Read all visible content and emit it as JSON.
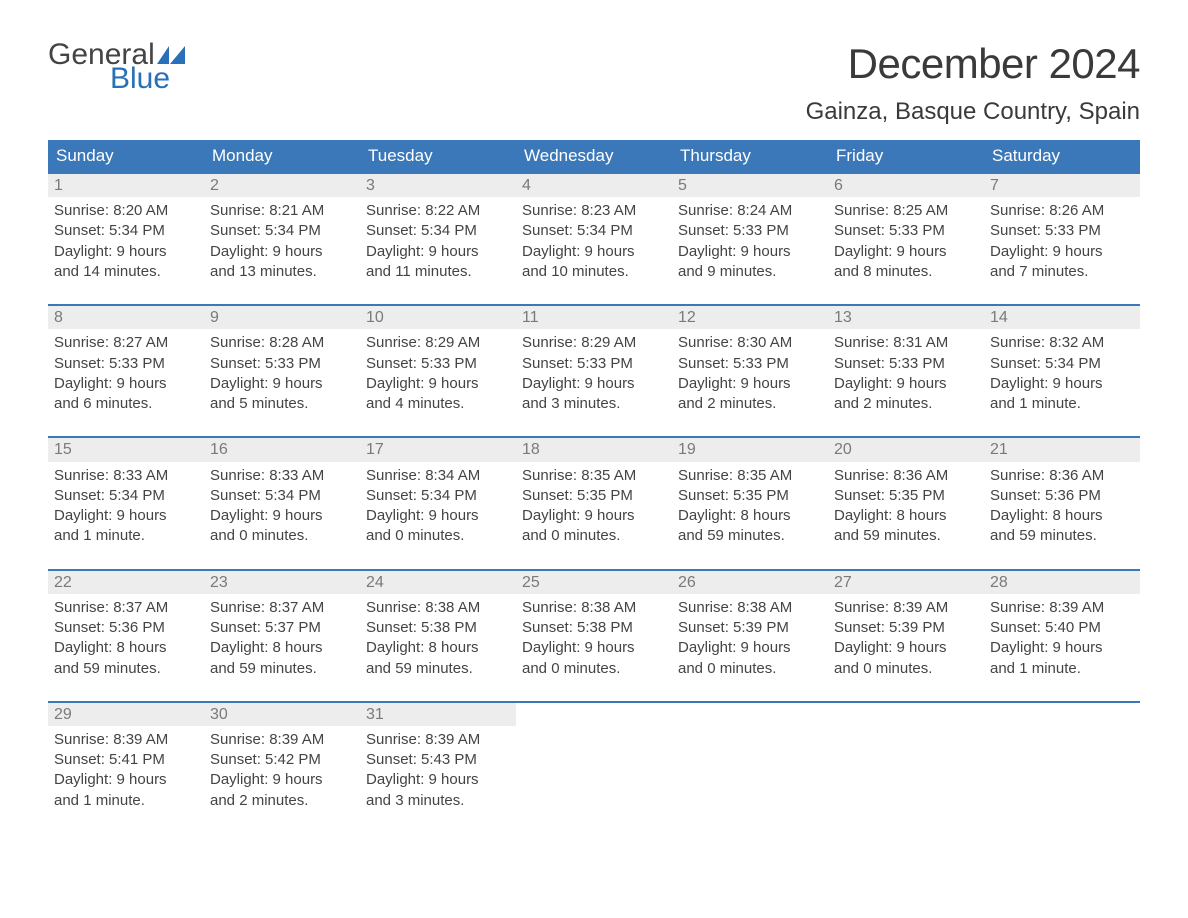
{
  "brand": {
    "general": "General",
    "blue": "Blue",
    "flag_color": "#2a70b8"
  },
  "title": "December 2024",
  "location": "Gainza, Basque Country, Spain",
  "colors": {
    "header_bg": "#3a78b9",
    "header_text": "#ffffff",
    "daynum_bg": "#ededed",
    "daynum_text": "#7a7a7a",
    "body_text": "#444444",
    "week_border": "#3a78b9",
    "page_bg": "#ffffff",
    "logo_blue": "#2a70b8"
  },
  "day_headers": [
    "Sunday",
    "Monday",
    "Tuesday",
    "Wednesday",
    "Thursday",
    "Friday",
    "Saturday"
  ],
  "weeks": [
    [
      {
        "num": "1",
        "sunrise": "Sunrise: 8:20 AM",
        "sunset": "Sunset: 5:34 PM",
        "dl1": "Daylight: 9 hours",
        "dl2": "and 14 minutes."
      },
      {
        "num": "2",
        "sunrise": "Sunrise: 8:21 AM",
        "sunset": "Sunset: 5:34 PM",
        "dl1": "Daylight: 9 hours",
        "dl2": "and 13 minutes."
      },
      {
        "num": "3",
        "sunrise": "Sunrise: 8:22 AM",
        "sunset": "Sunset: 5:34 PM",
        "dl1": "Daylight: 9 hours",
        "dl2": "and 11 minutes."
      },
      {
        "num": "4",
        "sunrise": "Sunrise: 8:23 AM",
        "sunset": "Sunset: 5:34 PM",
        "dl1": "Daylight: 9 hours",
        "dl2": "and 10 minutes."
      },
      {
        "num": "5",
        "sunrise": "Sunrise: 8:24 AM",
        "sunset": "Sunset: 5:33 PM",
        "dl1": "Daylight: 9 hours",
        "dl2": "and 9 minutes."
      },
      {
        "num": "6",
        "sunrise": "Sunrise: 8:25 AM",
        "sunset": "Sunset: 5:33 PM",
        "dl1": "Daylight: 9 hours",
        "dl2": "and 8 minutes."
      },
      {
        "num": "7",
        "sunrise": "Sunrise: 8:26 AM",
        "sunset": "Sunset: 5:33 PM",
        "dl1": "Daylight: 9 hours",
        "dl2": "and 7 minutes."
      }
    ],
    [
      {
        "num": "8",
        "sunrise": "Sunrise: 8:27 AM",
        "sunset": "Sunset: 5:33 PM",
        "dl1": "Daylight: 9 hours",
        "dl2": "and 6 minutes."
      },
      {
        "num": "9",
        "sunrise": "Sunrise: 8:28 AM",
        "sunset": "Sunset: 5:33 PM",
        "dl1": "Daylight: 9 hours",
        "dl2": "and 5 minutes."
      },
      {
        "num": "10",
        "sunrise": "Sunrise: 8:29 AM",
        "sunset": "Sunset: 5:33 PM",
        "dl1": "Daylight: 9 hours",
        "dl2": "and 4 minutes."
      },
      {
        "num": "11",
        "sunrise": "Sunrise: 8:29 AM",
        "sunset": "Sunset: 5:33 PM",
        "dl1": "Daylight: 9 hours",
        "dl2": "and 3 minutes."
      },
      {
        "num": "12",
        "sunrise": "Sunrise: 8:30 AM",
        "sunset": "Sunset: 5:33 PM",
        "dl1": "Daylight: 9 hours",
        "dl2": "and 2 minutes."
      },
      {
        "num": "13",
        "sunrise": "Sunrise: 8:31 AM",
        "sunset": "Sunset: 5:33 PM",
        "dl1": "Daylight: 9 hours",
        "dl2": "and 2 minutes."
      },
      {
        "num": "14",
        "sunrise": "Sunrise: 8:32 AM",
        "sunset": "Sunset: 5:34 PM",
        "dl1": "Daylight: 9 hours",
        "dl2": "and 1 minute."
      }
    ],
    [
      {
        "num": "15",
        "sunrise": "Sunrise: 8:33 AM",
        "sunset": "Sunset: 5:34 PM",
        "dl1": "Daylight: 9 hours",
        "dl2": "and 1 minute."
      },
      {
        "num": "16",
        "sunrise": "Sunrise: 8:33 AM",
        "sunset": "Sunset: 5:34 PM",
        "dl1": "Daylight: 9 hours",
        "dl2": "and 0 minutes."
      },
      {
        "num": "17",
        "sunrise": "Sunrise: 8:34 AM",
        "sunset": "Sunset: 5:34 PM",
        "dl1": "Daylight: 9 hours",
        "dl2": "and 0 minutes."
      },
      {
        "num": "18",
        "sunrise": "Sunrise: 8:35 AM",
        "sunset": "Sunset: 5:35 PM",
        "dl1": "Daylight: 9 hours",
        "dl2": "and 0 minutes."
      },
      {
        "num": "19",
        "sunrise": "Sunrise: 8:35 AM",
        "sunset": "Sunset: 5:35 PM",
        "dl1": "Daylight: 8 hours",
        "dl2": "and 59 minutes."
      },
      {
        "num": "20",
        "sunrise": "Sunrise: 8:36 AM",
        "sunset": "Sunset: 5:35 PM",
        "dl1": "Daylight: 8 hours",
        "dl2": "and 59 minutes."
      },
      {
        "num": "21",
        "sunrise": "Sunrise: 8:36 AM",
        "sunset": "Sunset: 5:36 PM",
        "dl1": "Daylight: 8 hours",
        "dl2": "and 59 minutes."
      }
    ],
    [
      {
        "num": "22",
        "sunrise": "Sunrise: 8:37 AM",
        "sunset": "Sunset: 5:36 PM",
        "dl1": "Daylight: 8 hours",
        "dl2": "and 59 minutes."
      },
      {
        "num": "23",
        "sunrise": "Sunrise: 8:37 AM",
        "sunset": "Sunset: 5:37 PM",
        "dl1": "Daylight: 8 hours",
        "dl2": "and 59 minutes."
      },
      {
        "num": "24",
        "sunrise": "Sunrise: 8:38 AM",
        "sunset": "Sunset: 5:38 PM",
        "dl1": "Daylight: 8 hours",
        "dl2": "and 59 minutes."
      },
      {
        "num": "25",
        "sunrise": "Sunrise: 8:38 AM",
        "sunset": "Sunset: 5:38 PM",
        "dl1": "Daylight: 9 hours",
        "dl2": "and 0 minutes."
      },
      {
        "num": "26",
        "sunrise": "Sunrise: 8:38 AM",
        "sunset": "Sunset: 5:39 PM",
        "dl1": "Daylight: 9 hours",
        "dl2": "and 0 minutes."
      },
      {
        "num": "27",
        "sunrise": "Sunrise: 8:39 AM",
        "sunset": "Sunset: 5:39 PM",
        "dl1": "Daylight: 9 hours",
        "dl2": "and 0 minutes."
      },
      {
        "num": "28",
        "sunrise": "Sunrise: 8:39 AM",
        "sunset": "Sunset: 5:40 PM",
        "dl1": "Daylight: 9 hours",
        "dl2": "and 1 minute."
      }
    ],
    [
      {
        "num": "29",
        "sunrise": "Sunrise: 8:39 AM",
        "sunset": "Sunset: 5:41 PM",
        "dl1": "Daylight: 9 hours",
        "dl2": "and 1 minute."
      },
      {
        "num": "30",
        "sunrise": "Sunrise: 8:39 AM",
        "sunset": "Sunset: 5:42 PM",
        "dl1": "Daylight: 9 hours",
        "dl2": "and 2 minutes."
      },
      {
        "num": "31",
        "sunrise": "Sunrise: 8:39 AM",
        "sunset": "Sunset: 5:43 PM",
        "dl1": "Daylight: 9 hours",
        "dl2": "and 3 minutes."
      },
      null,
      null,
      null,
      null
    ]
  ]
}
